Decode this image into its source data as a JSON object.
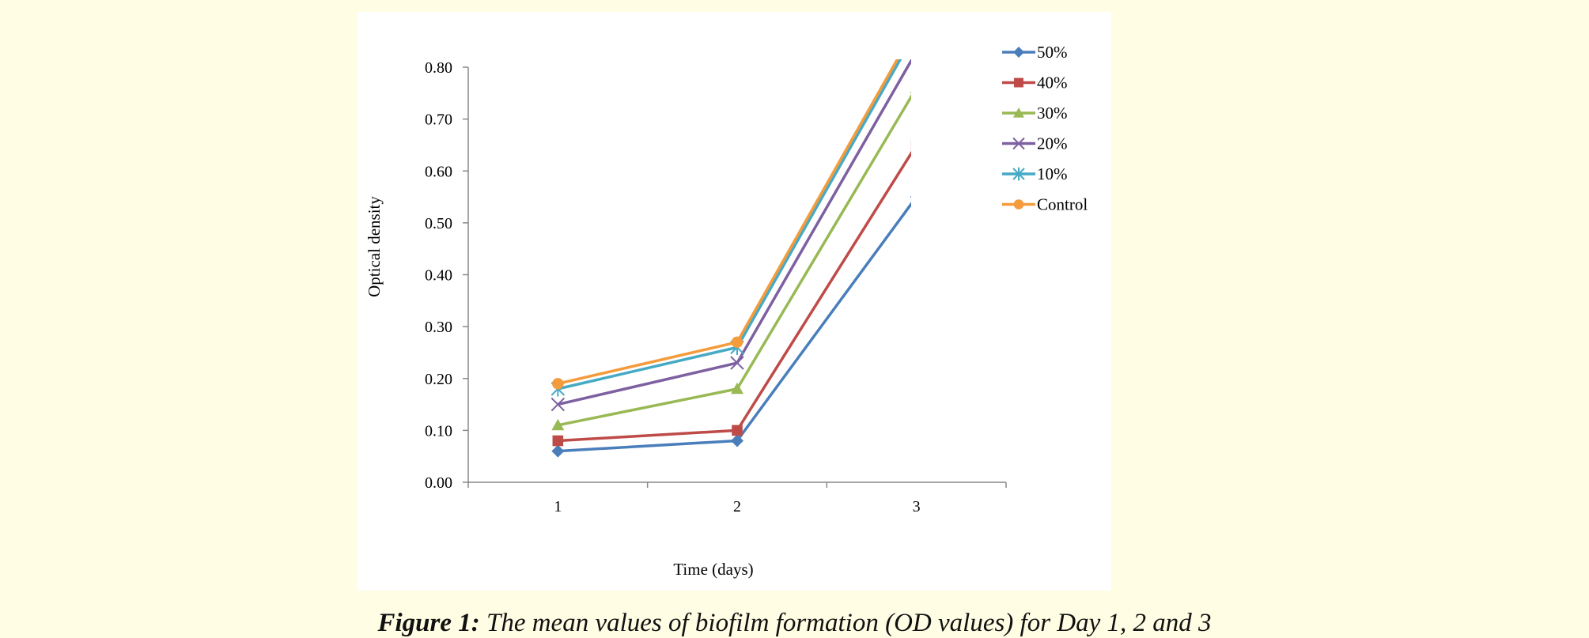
{
  "caption": {
    "label": "Figure 1:",
    "text": "The mean values of biofilm formation (OD values) for Day 1, 2 and 3"
  },
  "chart_data": {
    "type": "line",
    "title": "",
    "xlabel": "Time (days)",
    "ylabel": "Optical density",
    "x": [
      1,
      2,
      3
    ],
    "xlim": [
      0.5,
      3.5
    ],
    "ylim": [
      0,
      0.8
    ],
    "yticks": [
      "0.00",
      "0.10",
      "0.20",
      "0.30",
      "0.40",
      "0.50",
      "0.60",
      "0.70",
      "0.80"
    ],
    "grid": false,
    "legend": "right",
    "series": [
      {
        "name": "50%",
        "color": "#4a7ebb",
        "marker": "diamond",
        "values": [
          0.06,
          0.08,
          0.55
        ]
      },
      {
        "name": "40%",
        "color": "#be4b48",
        "marker": "square",
        "values": [
          0.08,
          0.1,
          0.65
        ]
      },
      {
        "name": "30%",
        "color": "#98b954",
        "marker": "triangle",
        "values": [
          0.11,
          0.18,
          0.76
        ]
      },
      {
        "name": "20%",
        "color": "#7d60a0",
        "marker": "x",
        "values": [
          0.15,
          0.23,
          0.83
        ]
      },
      {
        "name": "10%",
        "color": "#46aac5",
        "marker": "star",
        "values": [
          0.18,
          0.26,
          0.87
        ]
      },
      {
        "name": "Control",
        "color": "#f49b3b",
        "marker": "circle",
        "values": [
          0.19,
          0.27,
          0.88
        ]
      }
    ]
  }
}
